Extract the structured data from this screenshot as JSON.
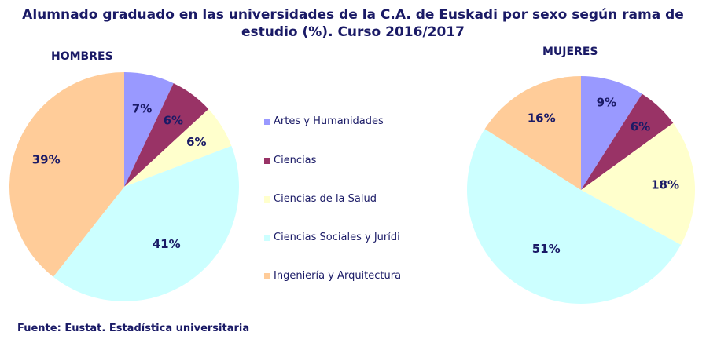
{
  "chart_data": {
    "type": "pie",
    "title": "Alumnado graduado en las universidades  de la C.A. de Euskadi por sexo según rama de estudio (%). Curso 2016/2017",
    "categories": [
      "Artes y Humanidades",
      "Ciencias",
      "Ciencias de la Salud",
      "Ciencias Sociales y Jurídicas",
      "Ingeniería y Arquitectura"
    ],
    "legend_labels": [
      "Artes y Humanidades",
      "Ciencias",
      "Ciencias de la Salud",
      "Ciencias Sociales y Jurídi",
      "Ingeniería y Arquitectura"
    ],
    "colors": [
      "#9999ff",
      "#993366",
      "#ffffcc",
      "#ccffff",
      "#ffcc99"
    ],
    "series": [
      {
        "name": "HOMBRES",
        "values": [
          7,
          6,
          6,
          41,
          39
        ],
        "labels": [
          "7%",
          "6%",
          "6%",
          "41%",
          "39%"
        ]
      },
      {
        "name": "MUJERES",
        "values": [
          9,
          6,
          18,
          51,
          16
        ],
        "labels": [
          "9%",
          "6%",
          "18%",
          "51%",
          "16%"
        ]
      }
    ],
    "legend_position": "center"
  },
  "source": "Fuente: Eustat. Estadística universitaria"
}
